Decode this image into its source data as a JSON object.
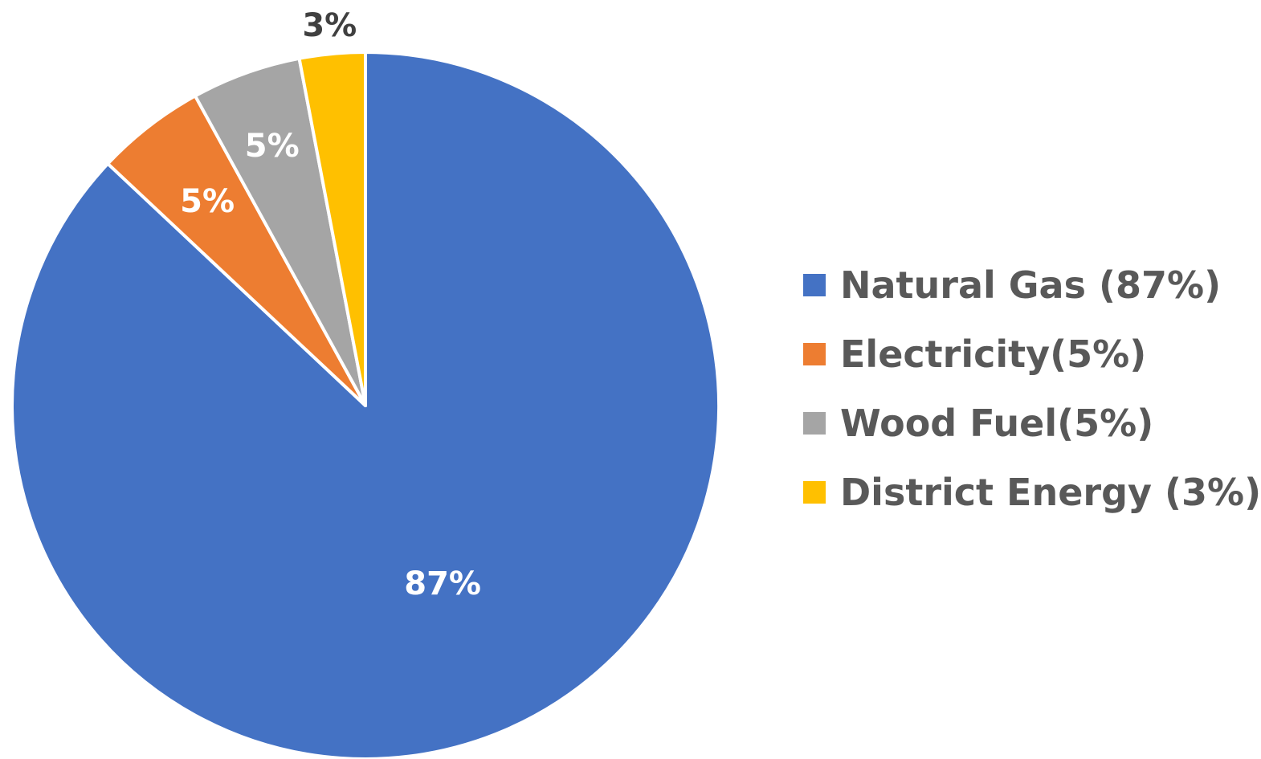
{
  "chart_data": {
    "type": "pie",
    "title": "",
    "slices": [
      {
        "label": "Natural Gas (87%)",
        "value": 87,
        "data_label": "87%",
        "color": "#4472C4",
        "data_label_color": "#FFFFFF"
      },
      {
        "label": "Electricity(5%)",
        "value": 5,
        "data_label": "5%",
        "color": "#ED7D31",
        "data_label_color": "#FFFFFF"
      },
      {
        "label": "Wood Fuel(5%)",
        "value": 5,
        "data_label": "5%",
        "color": "#A5A5A5",
        "data_label_color": "#FFFFFF"
      },
      {
        "label": "District Energy (3%)",
        "value": 3,
        "data_label": "3%",
        "color": "#FFC000",
        "data_label_color": "#404040"
      }
    ],
    "legend_position": "right",
    "start_angle_deg": 0,
    "direction": "clockwise"
  }
}
